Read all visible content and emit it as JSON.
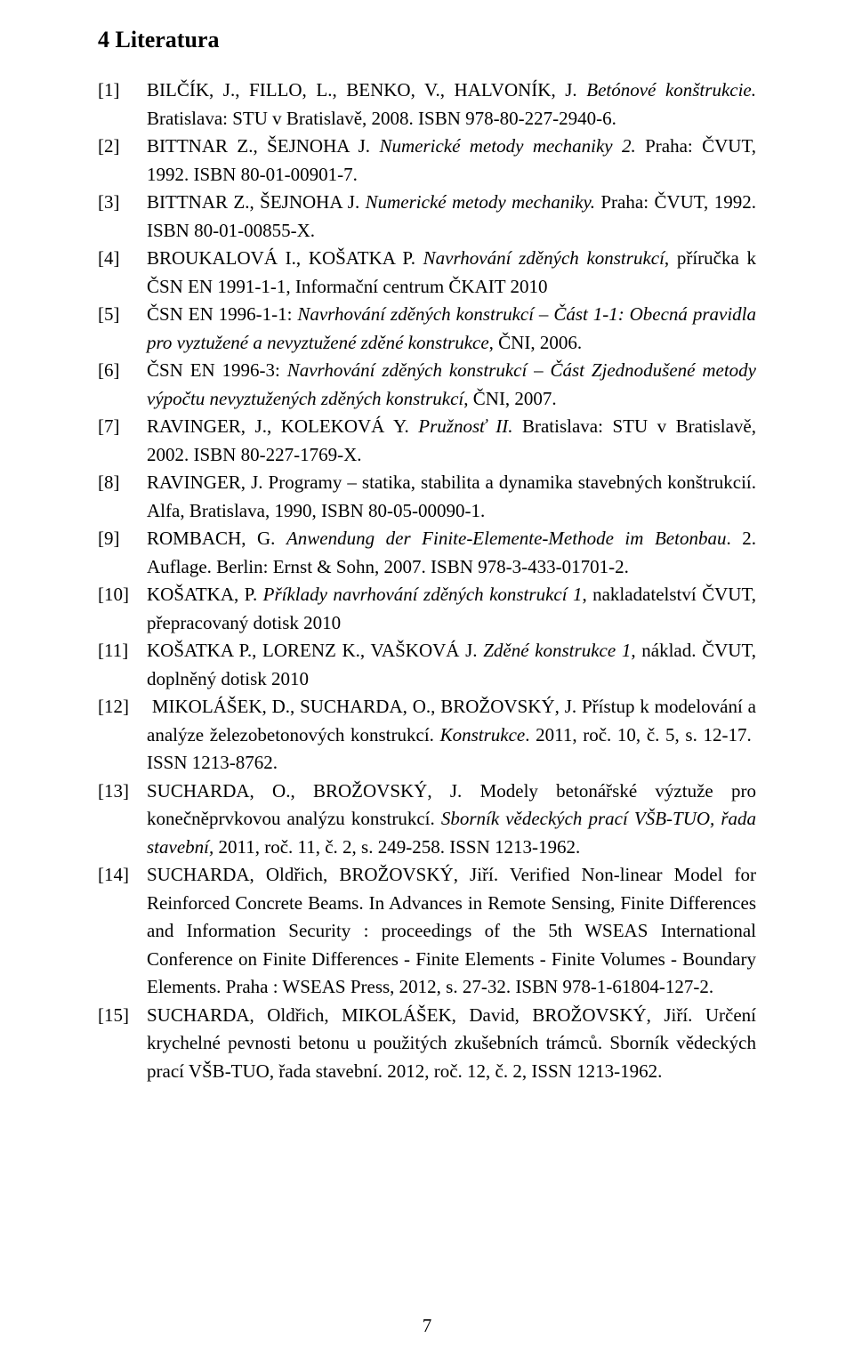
{
  "heading": "4  Literatura",
  "page_number": "7",
  "refs": [
    {
      "tag": "[1]",
      "html": "BILČÍK, J., FILLO, L., BENKO, V., HALVONÍK, J. <i>Betónové konštrukcie.</i> Bratislava: STU v Bratislavě, 2008. ISBN 978-80-227-2940-6."
    },
    {
      "tag": "[2]",
      "html": "BITTNAR Z., ŠEJNOHA J. <i>Numerické metody mechaniky 2.</i> Praha: ČVUT, 1992. ISBN 80-01-00901-7."
    },
    {
      "tag": "[3]",
      "html": "BITTNAR Z., ŠEJNOHA J. <i>Numerické metody mechaniky.</i> Praha: ČVUT, 1992. ISBN 80-01-00855-X."
    },
    {
      "tag": "[4]",
      "html": "BROUKALOVÁ I., KOŠATKA P. <i>Navrhování zděných konstrukcí</i>, příručka k ČSN EN 1991-1-1, Informační centrum ČKAIT 2010"
    },
    {
      "tag": "[5]",
      "html": "ČSN EN 1996-1-1: <i>Navrhování zděných konstrukcí – Část 1-1: Obecná pravidla pro vyztužené a nevyztužené zděné konstrukce</i>, ČNI, 2006."
    },
    {
      "tag": "[6]",
      "html": "ČSN EN 1996-3: <i>Navrhování zděných konstrukcí – Část Zjednodušené metody výpočtu nevyztužených zděných konstrukcí</i>, ČNI, 2007."
    },
    {
      "tag": "[7]",
      "html": "RAVINGER, J., KOLEKOVÁ Y. <i>Pružnosť II.</i> Bratislava: STU v Bratislavě, 2002. ISBN 80-227-1769-X."
    },
    {
      "tag": "[8]",
      "html": "RAVINGER, J. Programy – statika, stabilita a dynamika stavebných konštrukcií. Alfa, Bratislava, 1990, ISBN 80-05-00090-1."
    },
    {
      "tag": "[9]",
      "html": "ROMBACH, G. <i>Anwendung der Finite-Elemente-Methode im Betonbau</i>. 2. Auflage. Berlin: Ernst & Sohn, 2007. ISBN 978-3-433-01701-2."
    },
    {
      "tag": "[10]",
      "html": "KOŠATKA, P. <i>Příklady navrhování zděných konstrukcí 1</i>, nakladatelství ČVUT, přepracovaný dotisk 2010"
    },
    {
      "tag": "[11]",
      "html": "KOŠATKA P., LORENZ K., VAŠKOVÁ J. <i>Zděné konstrukce 1</i>, náklad. ČVUT, doplněný dotisk 2010"
    },
    {
      "tag": "[12]",
      "html": "&nbsp;MIKOLÁŠEK, D., SUCHARDA, O., BROŽOVSKÝ, J. Přístup k modelování a analýze železobetonových konstrukcí. <i>Konstrukce</i>. 2011, roč. 10, č. 5, s. 12-17.&nbsp; ISSN 1213-8762."
    },
    {
      "tag": "[13]",
      "html": "SUCHARDA, O., BROŽOVSKÝ, J. Modely betonářské výztuže pro konečněprvkovou analýzu konstrukcí. <i>Sborník vědeckých prací VŠB-TUO, řada stavební,</i> 2011, roč. 11, č. 2, s. 249-258. ISSN 1213-1962."
    },
    {
      "tag": "[14]",
      "html": "SUCHARDA, Oldřich, BROŽOVSKÝ, Jiří. Verified Non-linear Model for Reinforced Concrete Beams. In Advances in Remote Sensing, Finite Differences and Information Security : proceedings of the 5th WSEAS International Conference on Finite Differences - Finite Elements - Finite Volumes - Boundary Elements. Praha : WSEAS Press, 2012, s. 27-32. ISBN 978-1-61804-127-2."
    },
    {
      "tag": "[15]",
      "html": "SUCHARDA, Oldřich, MIKOLÁŠEK, David, BROŽOVSKÝ, Jiří. Určení krychelné pevnosti betonu u použitých zkušebních trámců. Sborník vědeckých prací VŠB-TUO, řada stavební. 2012, roč. 12, č. 2, ISSN 1213-1962."
    }
  ]
}
